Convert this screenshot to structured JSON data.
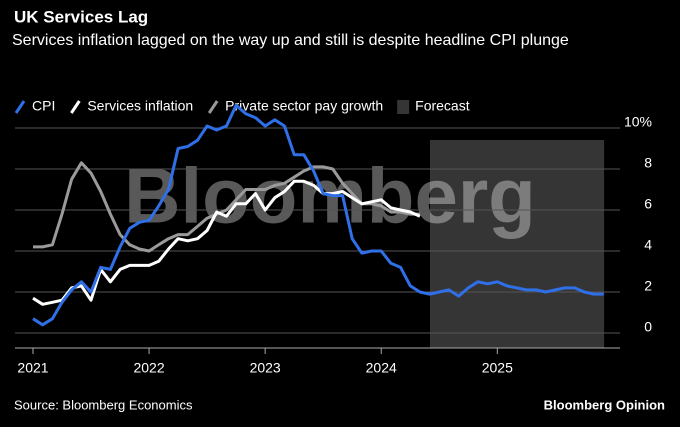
{
  "chart_data": {
    "type": "line",
    "title": "UK Services Lag",
    "subtitle": "Services inflation lagged on the way up and still is despite headline CPI plunge",
    "watermark": "Bloomberg",
    "source": "Source: Bloomberg Economics",
    "brand": "Bloomberg Opinion",
    "x": [
      2021,
      2021.083,
      2021.167,
      2021.25,
      2021.333,
      2021.417,
      2021.5,
      2021.583,
      2021.667,
      2021.75,
      2021.833,
      2021.917,
      2022,
      2022.083,
      2022.167,
      2022.25,
      2022.333,
      2022.417,
      2022.5,
      2022.583,
      2022.667,
      2022.75,
      2022.833,
      2022.917,
      2023,
      2023.083,
      2023.167,
      2023.25,
      2023.333,
      2023.417,
      2023.5,
      2023.583,
      2023.667,
      2023.75,
      2023.833,
      2023.917,
      2024,
      2024.083,
      2024.167,
      2024.25,
      2024.333,
      2024.417,
      2024.5,
      2024.583,
      2024.667,
      2024.75,
      2024.833,
      2024.917,
      2025,
      2025.083,
      2025.167,
      2025.25,
      2025.333,
      2025.417,
      2025.5,
      2025.583,
      2025.667,
      2025.75,
      2025.833,
      2025.917
    ],
    "series": [
      {
        "name": "CPI",
        "color": "#2f6fe8",
        "values": [
          0.7,
          0.4,
          0.7,
          1.5,
          2.1,
          2.5,
          2.0,
          3.2,
          3.1,
          4.2,
          5.1,
          5.4,
          5.5,
          6.2,
          7.0,
          9.0,
          9.1,
          9.4,
          10.1,
          9.9,
          10.1,
          11.1,
          10.7,
          10.5,
          10.1,
          10.4,
          10.1,
          8.7,
          8.7,
          7.9,
          6.8,
          6.7,
          6.7,
          4.6,
          3.9,
          4.0,
          4.0,
          3.4,
          3.2,
          2.3,
          2.0,
          1.9,
          2.0,
          2.1,
          1.8,
          2.2,
          2.5,
          2.4,
          2.5,
          2.3,
          2.2,
          2.1,
          2.1,
          2.0,
          2.1,
          2.2,
          2.2,
          2.0,
          1.9,
          1.9
        ]
      },
      {
        "name": "Services inflation",
        "color": "#ffffff",
        "values": [
          1.7,
          1.4,
          1.5,
          1.6,
          2.2,
          2.3,
          1.6,
          3.1,
          2.5,
          3.1,
          3.3,
          3.3,
          3.3,
          3.5,
          4.1,
          4.6,
          4.5,
          4.6,
          5.0,
          5.9,
          5.7,
          6.3,
          6.3,
          6.8,
          6.0,
          6.6,
          6.9,
          7.4,
          7.4,
          7.2,
          6.8,
          6.8,
          6.9,
          6.6,
          6.3,
          6.4,
          6.5,
          6.1,
          6.0,
          5.9,
          5.7,
          null,
          null,
          null,
          null,
          null,
          null,
          null,
          null,
          null,
          null,
          null,
          null,
          null,
          null,
          null,
          null,
          null,
          null,
          null
        ]
      },
      {
        "name": "Private sector pay growth",
        "color": "#9a9a9a",
        "values": [
          4.2,
          4.2,
          4.3,
          5.8,
          7.5,
          8.3,
          7.8,
          6.9,
          5.8,
          4.8,
          4.3,
          4.1,
          4.0,
          4.3,
          4.6,
          4.8,
          4.8,
          5.2,
          5.6,
          5.8,
          6.0,
          6.5,
          7.0,
          7.0,
          7.0,
          7.2,
          7.3,
          7.6,
          7.9,
          8.1,
          8.1,
          8.0,
          7.3,
          6.8,
          6.3,
          6.3,
          6.2,
          5.9,
          5.9,
          5.8,
          5.8,
          null,
          null,
          null,
          null,
          null,
          null,
          null,
          null,
          null,
          null,
          null,
          null,
          null,
          null,
          null,
          null,
          null,
          null,
          null
        ]
      }
    ],
    "forecast": {
      "label": "Forecast",
      "color": "#353535",
      "range": [
        2024.42,
        2025.92
      ]
    },
    "xlim": [
      2020.845,
      2026.1
    ],
    "xticks": [
      2021,
      2022,
      2023,
      2024,
      2025
    ],
    "ylim": [
      -0.7,
      11.2
    ],
    "yticks": [
      0,
      2,
      4,
      6,
      8,
      {
        "value": 10,
        "label": "10%"
      }
    ],
    "grid": true
  }
}
